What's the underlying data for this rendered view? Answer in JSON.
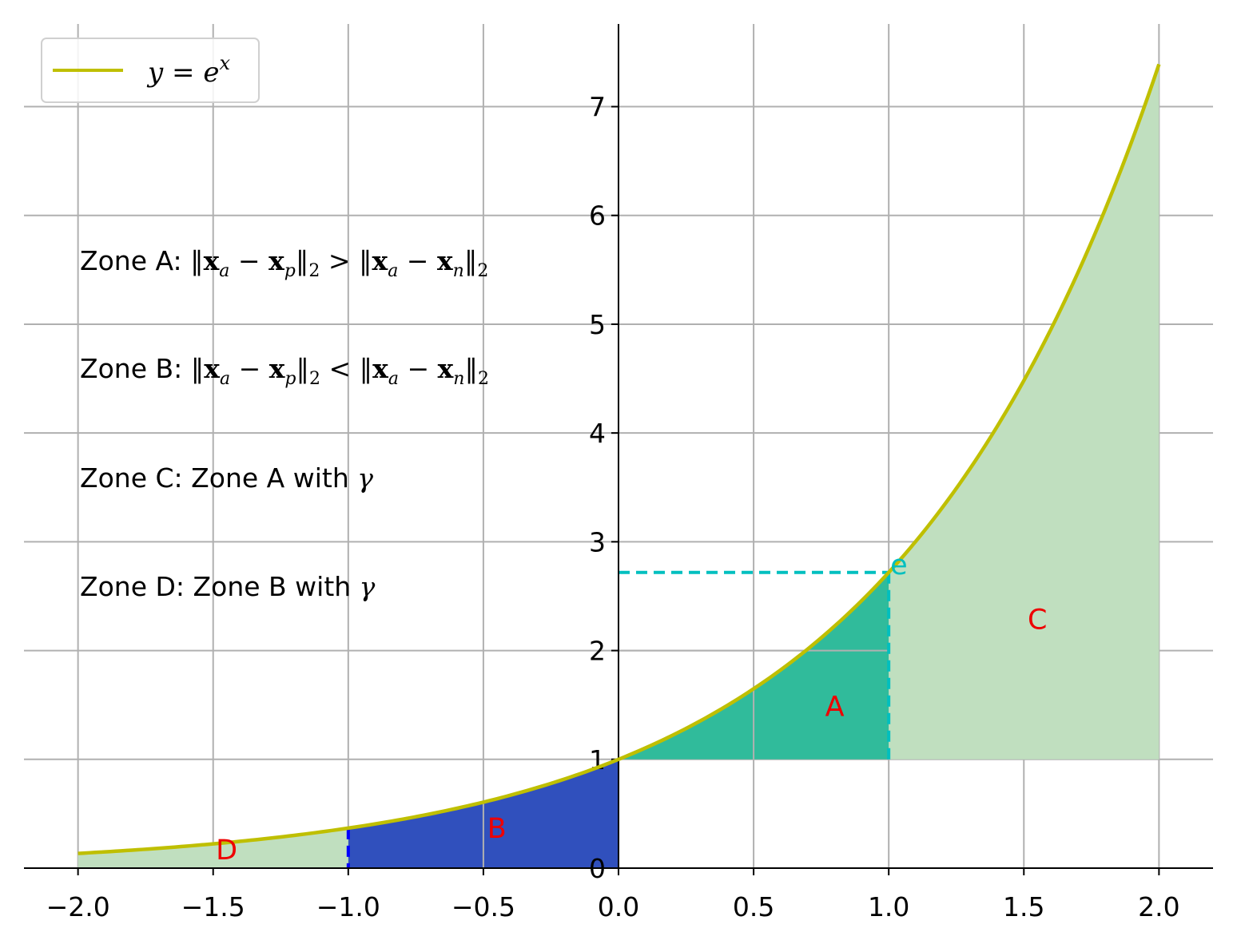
{
  "chart_data": {
    "type": "line",
    "function": "exp",
    "xlim": [
      -2.2,
      2.2
    ],
    "ylim": [
      0,
      7.76
    ],
    "x_ticks": [
      "−2.0",
      "−1.5",
      "−1.0",
      "−0.5",
      "0.0",
      "0.5",
      "1.0",
      "1.5",
      "2.0"
    ],
    "y_ticks": [
      "0",
      "1",
      "2",
      "3",
      "4",
      "5",
      "6",
      "7"
    ],
    "grid": true,
    "legend_position": "upper-left",
    "series": [
      {
        "name": "y = e^x",
        "domain": [
          -2,
          2
        ],
        "color": "#bfbf00"
      }
    ],
    "regions": [
      {
        "label": "A",
        "x_range": [
          0,
          1
        ],
        "between": "1 and e^x",
        "color": "#30bb9b"
      },
      {
        "label": "B",
        "x_range": [
          -1,
          0
        ],
        "between": "0 and e^x",
        "color": "#3050bd"
      },
      {
        "label": "C",
        "x_range": [
          1,
          2
        ],
        "between": "1 and e^x",
        "color": "#c0dfbf"
      },
      {
        "label": "D",
        "x_range": [
          -2,
          -1
        ],
        "between": "0 and e^x",
        "color": "#c0dfbf"
      }
    ],
    "annotations": [
      {
        "text": "e",
        "x": 1.0,
        "y": 2.718,
        "color": "#00bfbf"
      }
    ],
    "zone_texts": [
      {
        "prefix": "Zone A: ",
        "relation": ">"
      },
      {
        "prefix": "Zone B: ",
        "relation": "<"
      },
      {
        "prefix": "Zone C: ",
        "text": "Zone A with "
      },
      {
        "prefix": "Zone D: ",
        "text": "Zone B with "
      }
    ],
    "gamma_symbol": "γ",
    "labels": {
      "A": "A",
      "B": "B",
      "C": "C",
      "D": "D",
      "e": "e"
    },
    "legend": {
      "y": "y",
      "eq": " = ",
      "e": "e",
      "x": "x"
    }
  },
  "colors": {
    "curve": "#bfbf00",
    "region_A": "#30bb9b",
    "region_B": "#3050bd",
    "region_CD": "#c0dfbf",
    "cyan_dash": "#00bfbf",
    "blue_dash": "#0000ff",
    "label_red": "#ee0000",
    "grid": "#b0b0b0"
  }
}
